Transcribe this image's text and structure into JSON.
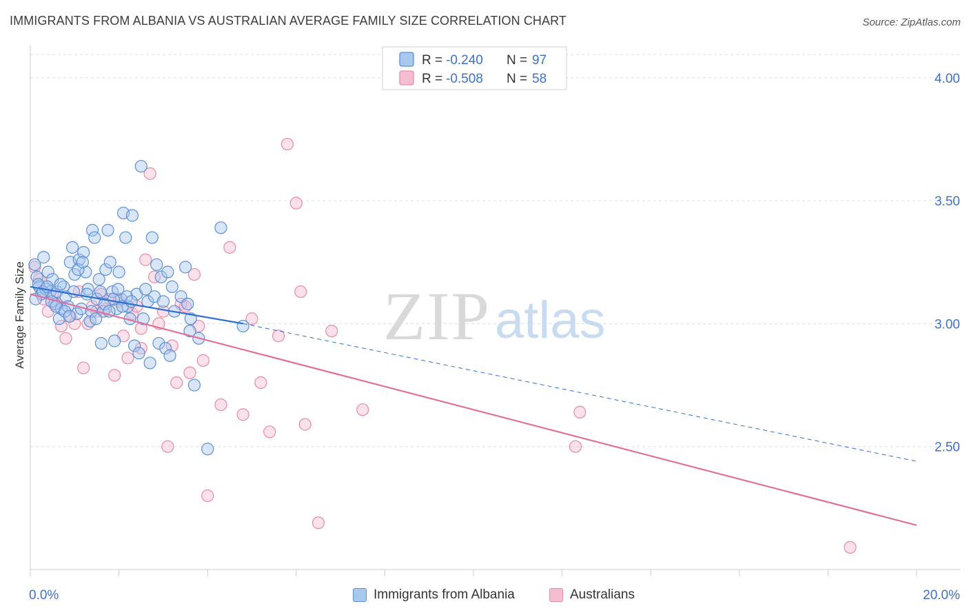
{
  "header": {
    "title": "IMMIGRANTS FROM ALBANIA VS AUSTRALIAN AVERAGE FAMILY SIZE CORRELATION CHART",
    "source": "Source: ZipAtlas.com"
  },
  "watermark": {
    "zip": "ZIP",
    "atlas": "atlas"
  },
  "colors": {
    "blue_fill": "#a9c8f0",
    "blue_stroke": "#5b8fd6",
    "blue_line": "#2e6fd1",
    "pink_fill": "#f5bdd0",
    "pink_stroke": "#e88aa8",
    "pink_line": "#e0709a",
    "axis_text": "#3d72c7",
    "grid": "#dddddd"
  },
  "chart_data": {
    "type": "scatter",
    "title": "IMMIGRANTS FROM ALBANIA VS AUSTRALIAN AVERAGE FAMILY SIZE CORRELATION CHART",
    "xlabel": "",
    "ylabel": "Average Family Size",
    "xlim": [
      0,
      20
    ],
    "ylim": [
      2.0,
      4.12
    ],
    "x_tick_labels": [
      "0.0%",
      "20.0%"
    ],
    "y_ticks": [
      2.5,
      3.0,
      3.5,
      4.0
    ],
    "y_tick_labels": [
      "2.50",
      "3.00",
      "3.50",
      "4.00"
    ],
    "grid": true,
    "legend_position": "top-center",
    "series": [
      {
        "name": "Immigrants from Albania",
        "R": "-0.240",
        "N": "97",
        "trend": {
          "x0": 0.0,
          "y0": 3.15,
          "x1": 4.8,
          "y1": 3.0,
          "dashed_to_x": 20.0,
          "dashed_to_y": 2.44
        },
        "points": [
          [
            0.1,
            3.24
          ],
          [
            0.15,
            3.19
          ],
          [
            0.2,
            3.15
          ],
          [
            0.25,
            3.12
          ],
          [
            0.3,
            3.27
          ],
          [
            0.35,
            3.14
          ],
          [
            0.4,
            3.21
          ],
          [
            0.45,
            3.13
          ],
          [
            0.5,
            3.18
          ],
          [
            0.55,
            3.08
          ],
          [
            0.6,
            3.13
          ],
          [
            0.65,
            3.02
          ],
          [
            0.7,
            3.06
          ],
          [
            0.75,
            3.15
          ],
          [
            0.8,
            3.11
          ],
          [
            0.85,
            3.07
          ],
          [
            0.9,
            3.25
          ],
          [
            0.95,
            3.31
          ],
          [
            1.0,
            3.2
          ],
          [
            1.05,
            3.04
          ],
          [
            1.1,
            3.26
          ],
          [
            1.15,
            3.06
          ],
          [
            1.2,
            3.29
          ],
          [
            1.25,
            3.21
          ],
          [
            1.3,
            3.14
          ],
          [
            1.35,
            3.01
          ],
          [
            1.4,
            3.38
          ],
          [
            1.45,
            3.35
          ],
          [
            1.5,
            3.1
          ],
          [
            1.55,
            3.18
          ],
          [
            1.6,
            2.92
          ],
          [
            1.65,
            3.05
          ],
          [
            1.7,
            3.22
          ],
          [
            1.75,
            3.38
          ],
          [
            1.8,
            3.25
          ],
          [
            1.85,
            3.13
          ],
          [
            1.9,
            2.93
          ],
          [
            1.95,
            3.06
          ],
          [
            2.0,
            3.21
          ],
          [
            2.05,
            3.1
          ],
          [
            2.1,
            3.45
          ],
          [
            2.15,
            3.35
          ],
          [
            2.2,
            3.07
          ],
          [
            2.25,
            3.02
          ],
          [
            2.3,
            3.44
          ],
          [
            2.35,
            2.91
          ],
          [
            2.4,
            3.12
          ],
          [
            2.45,
            2.88
          ],
          [
            2.5,
            3.64
          ],
          [
            2.55,
            3.02
          ],
          [
            2.6,
            3.14
          ],
          [
            2.65,
            3.09
          ],
          [
            2.7,
            2.84
          ],
          [
            2.75,
            3.35
          ],
          [
            2.8,
            3.11
          ],
          [
            2.85,
            3.24
          ],
          [
            2.9,
            2.92
          ],
          [
            2.95,
            3.19
          ],
          [
            3.0,
            3.09
          ],
          [
            3.05,
            2.9
          ],
          [
            3.1,
            3.21
          ],
          [
            3.15,
            2.87
          ],
          [
            3.2,
            3.15
          ],
          [
            3.25,
            3.05
          ],
          [
            3.4,
            3.11
          ],
          [
            3.5,
            3.23
          ],
          [
            3.6,
            2.97
          ],
          [
            3.7,
            2.75
          ],
          [
            3.8,
            2.94
          ],
          [
            4.0,
            2.49
          ],
          [
            4.3,
            3.39
          ],
          [
            4.8,
            2.99
          ],
          [
            3.55,
            3.08
          ],
          [
            3.62,
            3.02
          ],
          [
            0.12,
            3.1
          ],
          [
            0.18,
            3.16
          ],
          [
            0.28,
            3.13
          ],
          [
            0.38,
            3.15
          ],
          [
            0.48,
            3.09
          ],
          [
            0.58,
            3.07
          ],
          [
            0.68,
            3.16
          ],
          [
            0.78,
            3.05
          ],
          [
            0.88,
            3.03
          ],
          [
            0.98,
            3.13
          ],
          [
            1.08,
            3.22
          ],
          [
            1.18,
            3.25
          ],
          [
            1.28,
            3.12
          ],
          [
            1.38,
            3.05
          ],
          [
            1.48,
            3.02
          ],
          [
            1.58,
            3.13
          ],
          [
            1.68,
            3.08
          ],
          [
            1.78,
            3.05
          ],
          [
            1.88,
            3.1
          ],
          [
            1.98,
            3.14
          ],
          [
            2.08,
            3.07
          ],
          [
            2.18,
            3.11
          ],
          [
            2.28,
            3.09
          ]
        ]
      },
      {
        "name": "Australians",
        "R": "-0.508",
        "N": "58",
        "trend": {
          "x0": 0.0,
          "y0": 3.12,
          "x1": 20.0,
          "y1": 2.18
        },
        "points": [
          [
            0.1,
            3.23
          ],
          [
            0.2,
            3.18
          ],
          [
            0.3,
            3.1
          ],
          [
            0.4,
            3.05
          ],
          [
            0.5,
            3.12
          ],
          [
            0.6,
            3.08
          ],
          [
            0.7,
            2.99
          ],
          [
            0.8,
            2.94
          ],
          [
            0.9,
            3.03
          ],
          [
            1.0,
            3.0
          ],
          [
            1.1,
            3.13
          ],
          [
            1.2,
            2.82
          ],
          [
            1.3,
            3.0
          ],
          [
            1.4,
            3.07
          ],
          [
            1.5,
            3.05
          ],
          [
            1.6,
            3.12
          ],
          [
            1.7,
            3.06
          ],
          [
            1.8,
            3.1
          ],
          [
            1.9,
            2.79
          ],
          [
            2.0,
            3.09
          ],
          [
            2.1,
            2.95
          ],
          [
            2.2,
            2.86
          ],
          [
            2.3,
            3.04
          ],
          [
            2.4,
            3.07
          ],
          [
            2.5,
            2.9
          ],
          [
            2.6,
            3.26
          ],
          [
            2.7,
            3.61
          ],
          [
            2.8,
            3.19
          ],
          [
            2.9,
            3.0
          ],
          [
            3.0,
            3.05
          ],
          [
            3.1,
            2.5
          ],
          [
            3.2,
            2.91
          ],
          [
            3.3,
            2.76
          ],
          [
            3.4,
            3.08
          ],
          [
            3.5,
            3.07
          ],
          [
            3.6,
            2.8
          ],
          [
            3.7,
            3.2
          ],
          [
            3.8,
            2.99
          ],
          [
            3.9,
            2.85
          ],
          [
            4.0,
            2.3
          ],
          [
            4.3,
            2.67
          ],
          [
            4.5,
            3.31
          ],
          [
            4.8,
            2.63
          ],
          [
            5.0,
            3.02
          ],
          [
            5.2,
            2.76
          ],
          [
            5.4,
            2.56
          ],
          [
            5.6,
            2.95
          ],
          [
            5.8,
            3.73
          ],
          [
            6.0,
            3.49
          ],
          [
            6.1,
            3.13
          ],
          [
            6.2,
            2.59
          ],
          [
            6.5,
            2.19
          ],
          [
            6.8,
            2.97
          ],
          [
            7.5,
            2.65
          ],
          [
            12.4,
            2.64
          ],
          [
            12.3,
            2.5
          ],
          [
            18.5,
            2.09
          ],
          [
            2.5,
            2.98
          ]
        ]
      }
    ]
  },
  "legend_bottom": {
    "items": [
      "Immigrants from Albania",
      "Australians"
    ]
  },
  "legend_top": {
    "r_label": "R =",
    "n_label": "N ="
  }
}
